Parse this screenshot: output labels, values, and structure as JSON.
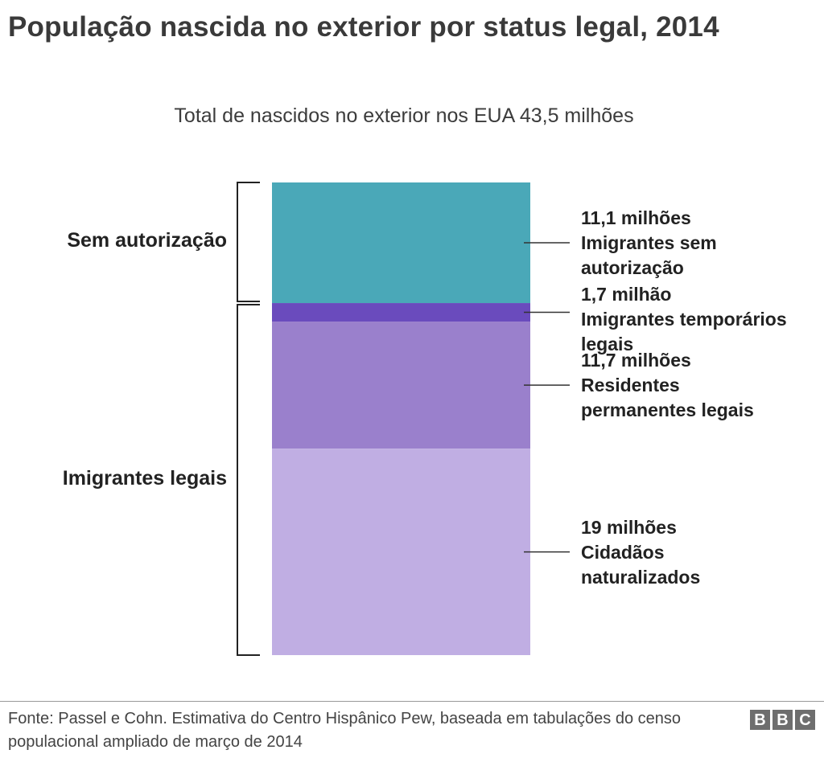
{
  "chart_data": {
    "type": "bar",
    "orientation": "stacked-vertical",
    "title": "População nascida no exterior por status legal, 2014",
    "subtitle": "Total de nascidos no exterior nos EUA 43,5 milhões",
    "total_millions": 43.5,
    "segments": [
      {
        "name": "Imigrantes sem autorização",
        "value": 11.1,
        "line1": "11,1 milhões",
        "line2": "Imigrantes sem\nautorização",
        "color": "#4aa8b8"
      },
      {
        "name": "Imigrantes temporários legais",
        "value": 1.7,
        "line1": "1,7 milhão",
        "line2": "Imigrantes temporários\nlegais",
        "color": "#6a4bbd"
      },
      {
        "name": "Residentes permanentes legais",
        "value": 11.7,
        "line1": "11,7 milhões",
        "line2": "Residentes\npermanentes legais",
        "color": "#9a80cc"
      },
      {
        "name": "Cidadãos naturalizados",
        "value": 19.0,
        "line1": "19 milhões",
        "line2": "Cidadãos\nnaturalizados",
        "color": "#c0aee3"
      }
    ],
    "groups": [
      {
        "label": "Sem autorização",
        "from": 0,
        "to": 0
      },
      {
        "label": "Imigrantes legais",
        "from": 1,
        "to": 3
      }
    ]
  },
  "footer": {
    "source": "Fonte: Passel e Cohn. Estimativa do Centro Hispânico Pew, baseada em tabulações do censo populacional ampliado de março de 2014",
    "logo_letters": [
      "B",
      "B",
      "C"
    ]
  }
}
